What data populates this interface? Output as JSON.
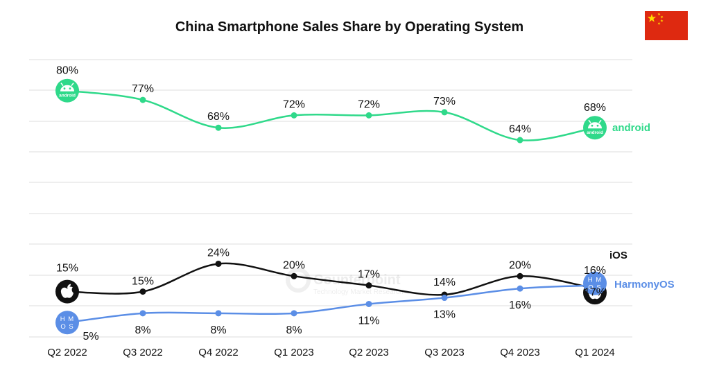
{
  "chart_data": {
    "type": "line",
    "title": "China Smartphone Sales Share by Operating System",
    "categories": [
      "Q2 2022",
      "Q3 2022",
      "Q4 2022",
      "Q1 2023",
      "Q2 2023",
      "Q3 2023",
      "Q4 2023",
      "Q1 2024"
    ],
    "ylim": [
      0,
      90
    ],
    "grid": true,
    "series": [
      {
        "name": "android",
        "color": "#2fd98a",
        "values": [
          80,
          77,
          68,
          72,
          72,
          73,
          64,
          68
        ],
        "labels": [
          "80%",
          "77%",
          "68%",
          "72%",
          "72%",
          "73%",
          "64%",
          "68%"
        ],
        "icon": "android-icon",
        "icon_text": "android"
      },
      {
        "name": "iOS",
        "color": "#111111",
        "values": [
          15,
          15,
          24,
          20,
          17,
          14,
          20,
          16
        ],
        "labels": [
          "15%",
          "15%",
          "24%",
          "20%",
          "17%",
          "14%",
          "20%",
          "16%"
        ],
        "icon": "apple-icon"
      },
      {
        "name": "HarmonyOS",
        "color": "#5b8ee6",
        "values": [
          5,
          8,
          8,
          8,
          11,
          13,
          16,
          17
        ],
        "labels": [
          "5%",
          "8%",
          "8%",
          "8%",
          "11%",
          "13%",
          "16%",
          "17%"
        ],
        "icon": "harmonyos-icon",
        "icon_text": [
          "H M",
          "O S"
        ]
      }
    ]
  },
  "watermark": {
    "brand": "Counterpoint",
    "sub": "Technology Market Research"
  },
  "flag": {
    "name": "china-flag-icon",
    "color": "#de2910",
    "star_color": "#ffde00"
  }
}
